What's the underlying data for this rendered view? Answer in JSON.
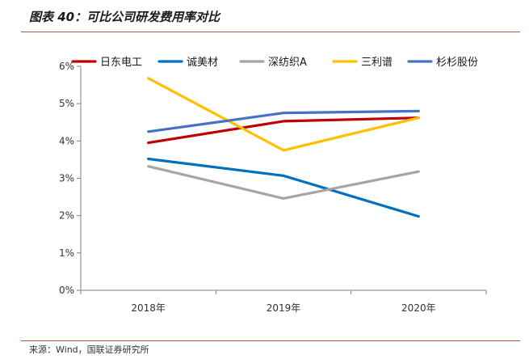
{
  "figure": {
    "title": "图表 40：可比公司研发费用率对比",
    "source": "来源：Wind，国联证券研究所"
  },
  "chart_data": {
    "type": "line",
    "categories": [
      "2018年",
      "2019年",
      "2020年"
    ],
    "ylim": [
      0,
      6
    ],
    "yticks": [
      0,
      1,
      2,
      3,
      4,
      5,
      6
    ],
    "ytick_labels": [
      "0%",
      "1%",
      "2%",
      "3%",
      "4%",
      "5%",
      "6%"
    ],
    "grid": false,
    "legend": "top",
    "series": [
      {
        "name": "日东电工",
        "color": "#c00000",
        "values": [
          3.95,
          4.53,
          4.62
        ]
      },
      {
        "name": "诚美材",
        "color": "#0070c0",
        "values": [
          3.52,
          3.07,
          1.98
        ]
      },
      {
        "name": "深纺织A",
        "color": "#a5a5a5",
        "values": [
          3.32,
          2.46,
          3.18
        ]
      },
      {
        "name": "三利谱",
        "color": "#ffc000",
        "values": [
          5.68,
          3.75,
          4.62
        ]
      },
      {
        "name": "杉杉股份",
        "color": "#4472c4",
        "values": [
          4.25,
          4.75,
          4.8
        ]
      }
    ]
  }
}
